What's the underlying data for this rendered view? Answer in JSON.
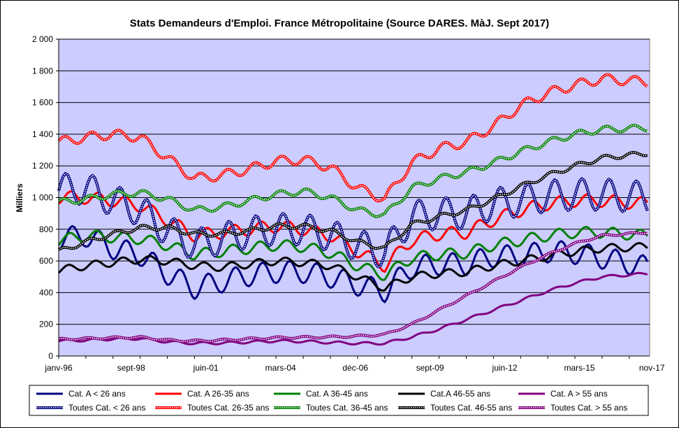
{
  "chart_data": {
    "type": "line",
    "title": "Stats Demandeurs d'Emploi. France Métropolitaine (Source DARES. MàJ. Sept 2017)",
    "ylabel": "Milliers",
    "xlabel": "",
    "ylim": [
      0,
      2000
    ],
    "yticks": [
      0,
      200,
      400,
      600,
      800,
      1000,
      1200,
      1400,
      1600,
      1800,
      2000
    ],
    "ytick_labels": [
      "0",
      "200",
      "400",
      "600",
      "800",
      "1 000",
      "1 200",
      "1 400",
      "1 600",
      "1 800",
      "2 000"
    ],
    "xlim": [
      1996.0,
      2017.75
    ],
    "xticks": [
      {
        "label": "janv-96",
        "t": 1996.0
      },
      {
        "label": "sept-98",
        "t": 1998.667
      },
      {
        "label": "juin-01",
        "t": 2001.417
      },
      {
        "label": "mars-04",
        "t": 2004.167
      },
      {
        "label": "déc-06",
        "t": 2006.917
      },
      {
        "label": "sept-09",
        "t": 2009.667
      },
      {
        "label": "juin-12",
        "t": 2012.417
      },
      {
        "label": "mars-15",
        "t": 2015.167
      },
      {
        "label": "nov-17",
        "t": 2017.833
      }
    ],
    "grid": true,
    "legend_position": "bottom",
    "series": [
      {
        "name": "Cat. A < 26 ans",
        "color": "#000080",
        "style": "solid",
        "amp": 70,
        "x": [
          1996,
          1997,
          1998,
          1999,
          2000,
          2001,
          2002,
          2003,
          2004,
          2005,
          2006,
          2007,
          2008,
          2009,
          2010,
          2011,
          2012,
          2013,
          2014,
          2015,
          2016,
          2017.67
        ],
        "y": [
          740,
          760,
          680,
          640,
          520,
          430,
          470,
          510,
          530,
          530,
          500,
          450,
          410,
          560,
          580,
          580,
          630,
          630,
          660,
          650,
          620,
          560
        ]
      },
      {
        "name": "Cat. A 26-35 ans",
        "color": "#ff0000",
        "style": "solid",
        "amp": 40,
        "x": [
          1996,
          1997,
          1998,
          1999,
          2000,
          2001,
          2002,
          2003,
          2004,
          2005,
          2006,
          2007,
          2008,
          2009,
          2010,
          2011,
          2012,
          2013,
          2014,
          2015,
          2016,
          2017.67
        ],
        "y": [
          1000,
          1000,
          980,
          950,
          860,
          760,
          780,
          800,
          820,
          800,
          760,
          660,
          570,
          730,
          770,
          780,
          860,
          920,
          960,
          980,
          980,
          960
        ]
      },
      {
        "name": "Cat. A 36-45 ans",
        "color": "#008000",
        "style": "solid",
        "amp": 35,
        "x": [
          1996,
          1997,
          1998,
          1999,
          2000,
          2001,
          2002,
          2003,
          2004,
          2005,
          2006,
          2007,
          2008,
          2009,
          2010,
          2011,
          2012,
          2013,
          2014,
          2015,
          2016,
          2017.67
        ],
        "y": [
          730,
          760,
          750,
          740,
          700,
          640,
          660,
          680,
          700,
          690,
          650,
          570,
          510,
          620,
          640,
          650,
          700,
          730,
          760,
          780,
          780,
          760
        ]
      },
      {
        "name": "Cat.A 46-55 ans",
        "color": "#000000",
        "style": "solid",
        "amp": 25,
        "x": [
          1996,
          1997,
          1998,
          1999,
          2000,
          2001,
          2002,
          2003,
          2004,
          2005,
          2006,
          2007,
          2008,
          2009,
          2010,
          2011,
          2012,
          2013,
          2014,
          2015,
          2016,
          2017.67
        ],
        "y": [
          540,
          570,
          590,
          610,
          600,
          570,
          560,
          580,
          600,
          590,
          570,
          500,
          430,
          500,
          520,
          530,
          570,
          600,
          630,
          660,
          680,
          690
        ]
      },
      {
        "name": "Cat. A > 55 ans",
        "color": "#800080",
        "style": "solid",
        "amp": 8,
        "x": [
          1996,
          1997,
          1998,
          1999,
          2000,
          2001,
          2002,
          2003,
          2004,
          2005,
          2006,
          2007,
          2008,
          2009,
          2010,
          2011,
          2012,
          2013,
          2014,
          2015,
          2016,
          2017.67
        ],
        "y": [
          95,
          100,
          108,
          110,
          90,
          80,
          82,
          88,
          95,
          92,
          85,
          80,
          80,
          120,
          170,
          230,
          290,
          350,
          410,
          460,
          500,
          520
        ]
      },
      {
        "name": "Toutes Cat. < 26 ans",
        "color": "#000080",
        "style": "dotted",
        "amp": 100,
        "x": [
          1996,
          1997,
          1998,
          1999,
          2000,
          2001,
          2002,
          2003,
          2004,
          2005,
          2006,
          2007,
          2008,
          2009,
          2010,
          2011,
          2012,
          2013,
          2014,
          2015,
          2016,
          2017.67
        ],
        "y": [
          1050,
          1060,
          980,
          920,
          790,
          700,
          740,
          780,
          800,
          800,
          760,
          700,
          650,
          880,
          900,
          900,
          960,
          980,
          1010,
          1020,
          1020,
          1000
        ]
      },
      {
        "name": "Toutes Cat. 26-35 ans",
        "color": "#ff0000",
        "style": "dotted",
        "amp": 30,
        "x": [
          1996,
          1997,
          1998,
          1999,
          2000,
          2001,
          2002,
          2003,
          2004,
          2005,
          2006,
          2007,
          2008,
          2009,
          2010,
          2011,
          2012,
          2013,
          2014,
          2015,
          2016,
          2017.67
        ],
        "y": [
          1350,
          1380,
          1400,
          1380,
          1250,
          1120,
          1140,
          1180,
          1230,
          1240,
          1190,
          1060,
          990,
          1220,
          1310,
          1350,
          1450,
          1580,
          1660,
          1710,
          1750,
          1730
        ]
      },
      {
        "name": "Toutes Cat. 36-45 ans",
        "color": "#008000",
        "style": "dotted",
        "amp": 20,
        "x": [
          1996,
          1997,
          1998,
          1999,
          2000,
          2001,
          2002,
          2003,
          2004,
          2005,
          2006,
          2007,
          2008,
          2009,
          2010,
          2011,
          2012,
          2013,
          2014,
          2015,
          2016,
          2017.67
        ],
        "y": [
          970,
          990,
          1020,
          1030,
          990,
          920,
          940,
          980,
          1020,
          1040,
          1000,
          920,
          890,
          1060,
          1120,
          1160,
          1220,
          1290,
          1350,
          1400,
          1430,
          1440
        ]
      },
      {
        "name": "Toutes Cat. 46-55 ans",
        "color": "#000000",
        "style": "dotted",
        "amp": 15,
        "x": [
          1996,
          1997,
          1998,
          1999,
          2000,
          2001,
          2002,
          2003,
          2004,
          2005,
          2006,
          2007,
          2008,
          2009,
          2010,
          2011,
          2012,
          2013,
          2014,
          2015,
          2016,
          2017.67
        ],
        "y": [
          660,
          720,
          770,
          810,
          810,
          770,
          770,
          790,
          820,
          820,
          790,
          720,
          680,
          830,
          880,
          920,
          990,
          1070,
          1140,
          1200,
          1250,
          1280
        ]
      },
      {
        "name": "Toutes Cat. > 55 ans",
        "color": "#800080",
        "style": "dotted",
        "amp": 6,
        "x": [
          1996,
          1997,
          1998,
          1999,
          2000,
          2001,
          2002,
          2003,
          2004,
          2005,
          2006,
          2007,
          2008,
          2009,
          2010,
          2011,
          2012,
          2013,
          2014,
          2015,
          2016,
          2017.67
        ],
        "y": [
          105,
          110,
          115,
          118,
          100,
          95,
          100,
          108,
          115,
          118,
          120,
          125,
          135,
          200,
          290,
          380,
          470,
          560,
          640,
          710,
          760,
          780
        ]
      }
    ]
  }
}
